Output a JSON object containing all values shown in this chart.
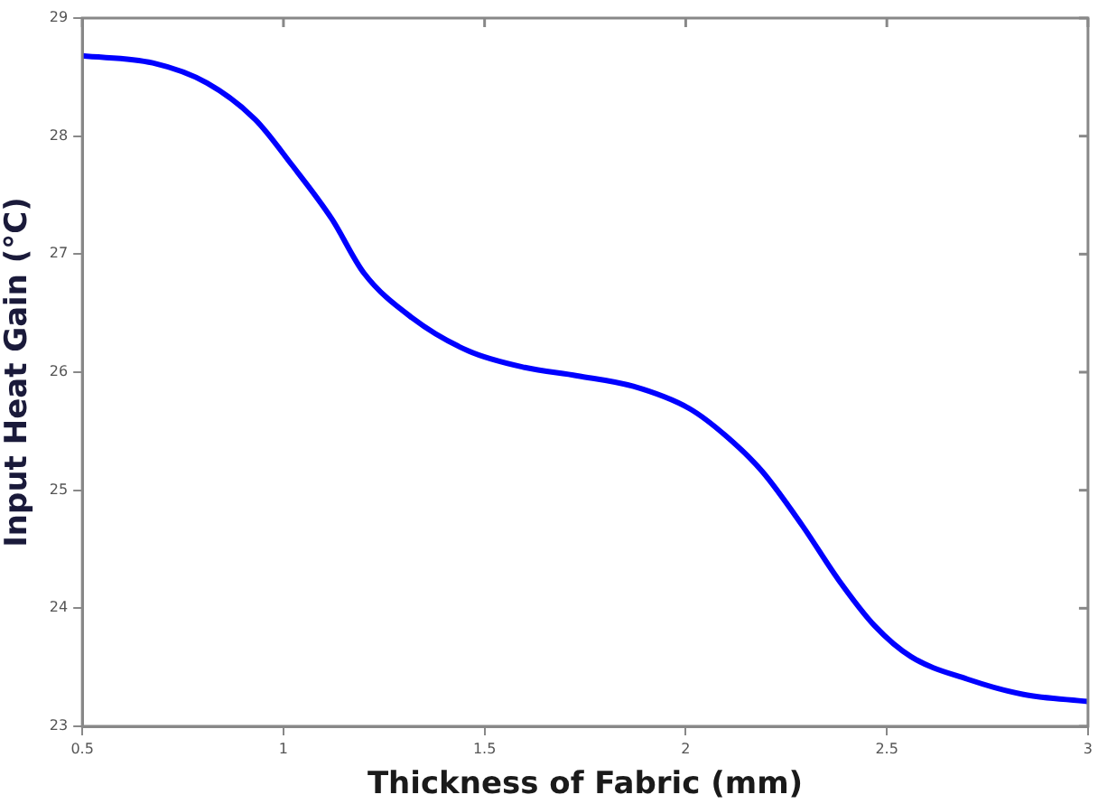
{
  "chart_data": {
    "type": "line",
    "xlabel": "Thickness of Fabric (mm)",
    "ylabel": "Input Heat Gain (°C)",
    "series": [
      {
        "color": "#0000ff",
        "x": [
          0.5,
          0.675,
          0.81,
          0.93,
          1.02,
          1.12,
          1.2,
          1.32,
          1.46,
          1.6,
          1.73,
          1.87,
          2.01,
          2.1,
          2.19,
          2.29,
          2.38,
          2.47,
          2.56,
          2.7,
          2.84,
          3.0
        ],
        "values": [
          28.68,
          28.62,
          28.45,
          28.14,
          27.76,
          27.3,
          26.84,
          26.46,
          26.18,
          26.04,
          25.97,
          25.88,
          25.69,
          25.46,
          25.16,
          24.7,
          24.24,
          23.85,
          23.59,
          23.4,
          23.27,
          23.21
        ]
      }
    ],
    "xlim": [
      0.5,
      3
    ],
    "xticks": [
      0.5,
      1,
      1.5,
      2,
      2.5,
      3
    ],
    "ylim": [
      23,
      29
    ],
    "yticks": [
      23,
      24,
      25,
      26,
      27,
      28,
      29
    ],
    "grid": false,
    "legend": false,
    "marker": "none",
    "line_style": "solid"
  }
}
